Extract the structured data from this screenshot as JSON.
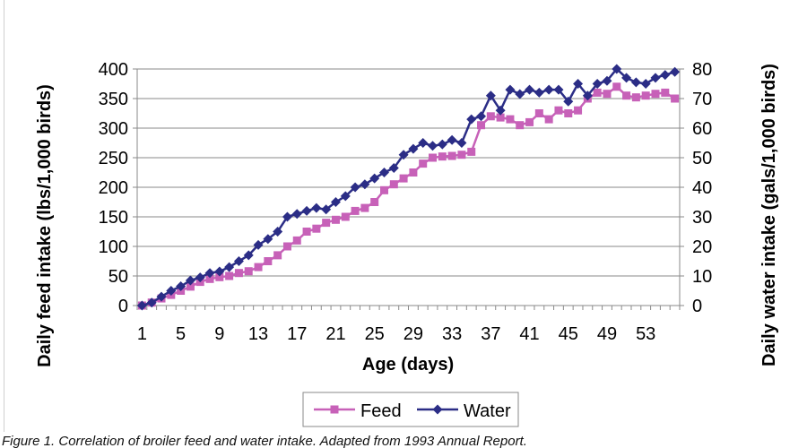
{
  "chart_data": {
    "type": "line",
    "title": "",
    "xlabel": "Age (days)",
    "ylabel": "Daily feed intake (lbs/1,000 birds)",
    "y2label": "Daily water intake (gals/1,000 birds)",
    "x": [
      1,
      2,
      3,
      4,
      5,
      6,
      7,
      8,
      9,
      10,
      11,
      12,
      13,
      14,
      15,
      16,
      17,
      18,
      19,
      20,
      21,
      22,
      23,
      24,
      25,
      26,
      27,
      28,
      29,
      30,
      31,
      32,
      33,
      34,
      35,
      36,
      37,
      38,
      39,
      40,
      41,
      42,
      43,
      44,
      45,
      46,
      47,
      48,
      49,
      50,
      51,
      52,
      53,
      54,
      55,
      56
    ],
    "x_tick_labels": [
      "1",
      "5",
      "9",
      "13",
      "17",
      "21",
      "25",
      "29",
      "33",
      "37",
      "41",
      "45",
      "49",
      "53"
    ],
    "ylim": [
      0,
      400
    ],
    "y_ticks": [
      0,
      50,
      100,
      150,
      200,
      250,
      300,
      350,
      400
    ],
    "y2lim": [
      0,
      80
    ],
    "y2_ticks": [
      0,
      10,
      20,
      30,
      40,
      50,
      60,
      70,
      80
    ],
    "grid": true,
    "legend_position": "bottom",
    "series": [
      {
        "name": "Feed",
        "axis": "left",
        "color": "#c761b8",
        "marker": "square",
        "values": [
          0,
          5,
          12,
          18,
          25,
          32,
          40,
          45,
          48,
          50,
          55,
          58,
          65,
          75,
          85,
          100,
          110,
          125,
          130,
          140,
          145,
          150,
          160,
          165,
          175,
          195,
          205,
          215,
          225,
          240,
          250,
          252,
          253,
          255,
          260,
          305,
          320,
          318,
          315,
          305,
          310,
          325,
          315,
          330,
          325,
          330,
          350,
          360,
          358,
          370,
          355,
          352,
          355,
          358,
          360,
          350
        ]
      },
      {
        "name": "Water",
        "axis": "right",
        "color": "#2b2d86",
        "marker": "diamond",
        "values": [
          0,
          1,
          3,
          5,
          6.5,
          8.5,
          9.5,
          11,
          11.5,
          13,
          15,
          17,
          20.5,
          22.5,
          25,
          30,
          31,
          32,
          33,
          32.5,
          35,
          37,
          40,
          41,
          43,
          45,
          46.5,
          51,
          53,
          55,
          54,
          54.5,
          56,
          55,
          63,
          64,
          71,
          66,
          73,
          71.5,
          73,
          72,
          73,
          73,
          69,
          75,
          71,
          75,
          76,
          80,
          77,
          75.5,
          75,
          77,
          78,
          79
        ]
      }
    ]
  },
  "caption": "Figure 1. Correlation of broiler feed and water intake. Adapted from 1993 Annual Report."
}
